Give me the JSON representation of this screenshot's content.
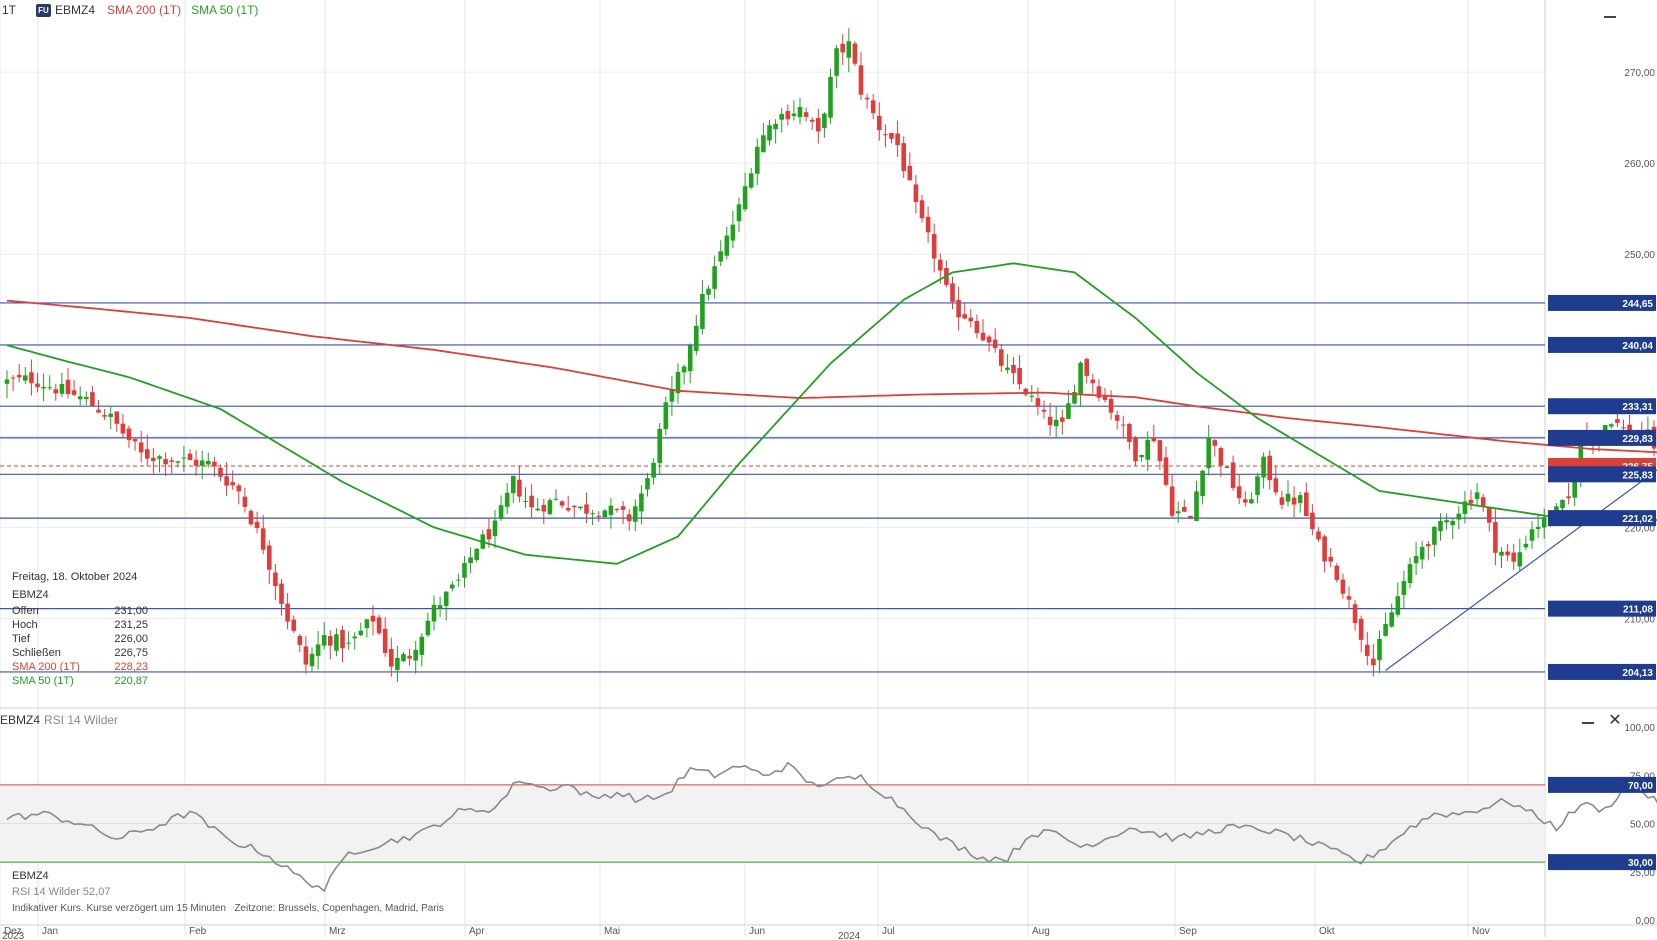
{
  "topbar": {
    "period": "1T",
    "logo": "FU",
    "symbol": "EBMZ4",
    "sma200_label": "SMA 200 (1T)",
    "sma50_label": "SMA 50 (1T)"
  },
  "info_panel": {
    "date": "Freitag, 18. Oktober 2024",
    "symbol": "EBMZ4",
    "rows": [
      {
        "label": "Offen",
        "value": "231,00"
      },
      {
        "label": "Hoch",
        "value": "231,25"
      },
      {
        "label": "Tief",
        "value": "226,00"
      },
      {
        "label": "Schließen",
        "value": "226,75"
      },
      {
        "label": "SMA 200 (1T)",
        "value": "228,23"
      },
      {
        "label": "SMA 50 (1T)",
        "value": "220,87"
      }
    ]
  },
  "rsi_panel": {
    "title": "EBMZ4",
    "subtitle": "RSI 14 Wilder",
    "info_symbol": "EBMZ4",
    "info_label": "RSI 14 Wilder",
    "info_value": "52,07"
  },
  "footer": {
    "note": "Indikativer Kurs. Kurse verzögert um 15 Minuten",
    "timezone": "Zeitzone: Brussels, Copenhagen, Madrid, Paris"
  },
  "colors": {
    "up": "#1fa31f",
    "down": "#e03c3c",
    "sma200": "#d9413a",
    "sma50": "#23a023",
    "level": "#3a55b5",
    "trend": "#3a55b5",
    "rsi": "#8a8a8a",
    "tag_bg": "#1f3c8e"
  },
  "chart_data": [
    {
      "type": "candlestick",
      "symbol": "EBMZ4",
      "y_ticks": [
        "270,00",
        "260,00",
        "250,00",
        "240,00",
        "230,00",
        "220,00",
        "210,00"
      ],
      "ylim": [
        200.5,
        275.5
      ],
      "months": [
        "Dez",
        "Jan",
        "Feb",
        "Mrz",
        "Apr",
        "Mai",
        "Jun",
        "Jul",
        "Aug",
        "Sep",
        "Okt",
        "Nov"
      ],
      "years": [
        "2023",
        "2024"
      ],
      "levels": [
        244.65,
        240.04,
        233.31,
        229.83,
        225.83,
        221.02,
        211.08,
        204.13
      ],
      "level_labels": [
        "244,65",
        "240,04",
        "233,31",
        "229,83",
        "225,83",
        "221,02",
        "211,08",
        "204,13"
      ],
      "last_price": 226.75,
      "last_price_label": "226,75",
      "close_anchors": [
        [
          0,
          236
        ],
        [
          4,
          236.3
        ],
        [
          9,
          235
        ],
        [
          13,
          234
        ],
        [
          17,
          232
        ],
        [
          22,
          228
        ],
        [
          27,
          227.5
        ],
        [
          33,
          227
        ],
        [
          38,
          224
        ],
        [
          42,
          218
        ],
        [
          46,
          210
        ],
        [
          49,
          205
        ],
        [
          52,
          208
        ],
        [
          56,
          207
        ],
        [
          60,
          210
        ],
        [
          63,
          205
        ],
        [
          66,
          206
        ],
        [
          70,
          211
        ],
        [
          74,
          214
        ],
        [
          77,
          218
        ],
        [
          80,
          220
        ],
        [
          83,
          225
        ],
        [
          86,
          222
        ],
        [
          90,
          223
        ],
        [
          94,
          222
        ],
        [
          98,
          222
        ],
        [
          102,
          221
        ],
        [
          105,
          225
        ],
        [
          108,
          233
        ],
        [
          111,
          238
        ],
        [
          114,
          245
        ],
        [
          117,
          250
        ],
        [
          120,
          255
        ],
        [
          123,
          262
        ],
        [
          126,
          265
        ],
        [
          130,
          266
        ],
        [
          133,
          263
        ],
        [
          136,
          272
        ],
        [
          138,
          273
        ],
        [
          140,
          268
        ],
        [
          143,
          264
        ],
        [
          146,
          262
        ],
        [
          149,
          255
        ],
        [
          152,
          250
        ],
        [
          155,
          244
        ],
        [
          158,
          243
        ],
        [
          161,
          240
        ],
        [
          164,
          237
        ],
        [
          167,
          235
        ],
        [
          170,
          232
        ],
        [
          173,
          231
        ],
        [
          176,
          238
        ],
        [
          179,
          235
        ],
        [
          182,
          232
        ],
        [
          185,
          228
        ],
        [
          188,
          230
        ],
        [
          191,
          222
        ],
        [
          194,
          221
        ],
        [
          197,
          230
        ],
        [
          200,
          226
        ],
        [
          203,
          222
        ],
        [
          206,
          227
        ],
        [
          209,
          223
        ],
        [
          212,
          223
        ],
        [
          215,
          218
        ],
        [
          218,
          215
        ],
        [
          221,
          210
        ],
        [
          224,
          205
        ],
        [
          226,
          209
        ],
        [
          229,
          214
        ],
        [
          232,
          218
        ],
        [
          235,
          220
        ],
        [
          238,
          222
        ],
        [
          241,
          224
        ],
        [
          244,
          218
        ],
        [
          247,
          216
        ],
        [
          250,
          220
        ],
        [
          253,
          221
        ],
        [
          256,
          223
        ],
        [
          258,
          230
        ],
        [
          260,
          230
        ],
        [
          263,
          232
        ],
        [
          266,
          230
        ],
        [
          269,
          230
        ],
        [
          272,
          227
        ]
      ],
      "sma200_anchors": [
        [
          0,
          244.9
        ],
        [
          15,
          244
        ],
        [
          30,
          243
        ],
        [
          50,
          241
        ],
        [
          70,
          239.5
        ],
        [
          90,
          237.5
        ],
        [
          110,
          235
        ],
        [
          130,
          234.2
        ],
        [
          150,
          234.6
        ],
        [
          170,
          234.8
        ],
        [
          185,
          234.3
        ],
        [
          195,
          233.3
        ],
        [
          210,
          232
        ],
        [
          225,
          231
        ],
        [
          245,
          229.5
        ],
        [
          260,
          228.6
        ],
        [
          272,
          228.2
        ]
      ],
      "sma50_anchors": [
        [
          0,
          240
        ],
        [
          10,
          238.2
        ],
        [
          20,
          236.5
        ],
        [
          35,
          233
        ],
        [
          45,
          229
        ],
        [
          55,
          225
        ],
        [
          70,
          220
        ],
        [
          85,
          217
        ],
        [
          100,
          216
        ],
        [
          110,
          219
        ],
        [
          120,
          227
        ],
        [
          135,
          238
        ],
        [
          147,
          245
        ],
        [
          155,
          248
        ],
        [
          165,
          249
        ],
        [
          175,
          248
        ],
        [
          185,
          243
        ],
        [
          195,
          237
        ],
        [
          205,
          232
        ],
        [
          215,
          228
        ],
        [
          225,
          224
        ],
        [
          240,
          222.5
        ],
        [
          255,
          221
        ],
        [
          265,
          220.5
        ],
        [
          272,
          220.9
        ]
      ],
      "trendline": [
        [
          226,
          204.3
        ],
        [
          284,
          233
        ]
      ]
    },
    {
      "type": "line",
      "title": "RSI 14 Wilder",
      "y_ticks": [
        "100,00",
        "75,00",
        "50,00",
        "25,00",
        "0,00"
      ],
      "ylim": [
        0,
        100
      ],
      "bands": [
        70,
        30
      ],
      "band_labels": [
        "70,00",
        "30,00"
      ],
      "last_value": 52.07,
      "rsi_anchors": [
        [
          0,
          53
        ],
        [
          6,
          55
        ],
        [
          12,
          50
        ],
        [
          18,
          42
        ],
        [
          24,
          48
        ],
        [
          30,
          56
        ],
        [
          36,
          42
        ],
        [
          42,
          35
        ],
        [
          48,
          22
        ],
        [
          52,
          16
        ],
        [
          56,
          35
        ],
        [
          62,
          40
        ],
        [
          68,
          45
        ],
        [
          74,
          56
        ],
        [
          80,
          58
        ],
        [
          84,
          73
        ],
        [
          88,
          68
        ],
        [
          92,
          70
        ],
        [
          96,
          63
        ],
        [
          100,
          66
        ],
        [
          104,
          62
        ],
        [
          108,
          65
        ],
        [
          112,
          78
        ],
        [
          116,
          75
        ],
        [
          120,
          80
        ],
        [
          124,
          75
        ],
        [
          128,
          80
        ],
        [
          132,
          70
        ],
        [
          136,
          72
        ],
        [
          140,
          74
        ],
        [
          144,
          65
        ],
        [
          148,
          55
        ],
        [
          152,
          44
        ],
        [
          156,
          38
        ],
        [
          160,
          32
        ],
        [
          164,
          32
        ],
        [
          168,
          45
        ],
        [
          172,
          45
        ],
        [
          176,
          38
        ],
        [
          180,
          42
        ],
        [
          184,
          48
        ],
        [
          188,
          45
        ],
        [
          192,
          42
        ],
        [
          196,
          45
        ],
        [
          200,
          48
        ],
        [
          206,
          47
        ],
        [
          212,
          42
        ],
        [
          218,
          35
        ],
        [
          222,
          30
        ],
        [
          226,
          38
        ],
        [
          230,
          48
        ],
        [
          234,
          55
        ],
        [
          238,
          55
        ],
        [
          242,
          58
        ],
        [
          246,
          62
        ],
        [
          250,
          55
        ],
        [
          254,
          48
        ],
        [
          258,
          60
        ],
        [
          262,
          57
        ],
        [
          266,
          72
        ],
        [
          270,
          62
        ],
        [
          274,
          52
        ]
      ]
    }
  ]
}
